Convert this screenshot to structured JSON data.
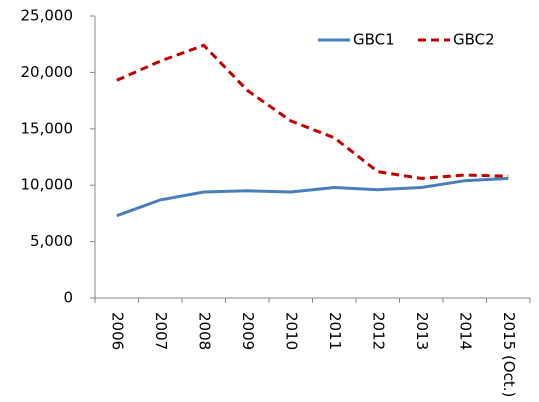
{
  "chart_data": {
    "type": "line",
    "categories": [
      "2006",
      "2007",
      "2008",
      "2009",
      "2010",
      "2011",
      "2012",
      "2013",
      "2014",
      "2015 (Oct.)"
    ],
    "series": [
      {
        "name": "GBC1",
        "color": "#4a7ebb",
        "values": [
          7300,
          8700,
          9400,
          9500,
          9400,
          9800,
          9600,
          9800,
          10400,
          10600
        ]
      },
      {
        "name": "GBC2",
        "color": "#c00000",
        "dashed": true,
        "values": [
          19300,
          21000,
          22400,
          18400,
          15700,
          14200,
          11200,
          10600,
          10900,
          10800
        ]
      }
    ],
    "ylim": [
      0,
      25000
    ],
    "yticks": [
      0,
      {
        "value": 5000,
        "label": "5,000"
      },
      {
        "value": 10000,
        "label": "10,000"
      },
      {
        "value": 15000,
        "label": "15,000"
      },
      {
        "value": 20000,
        "label": "20,000"
      },
      {
        "value": 25000,
        "label": "25,000"
      }
    ],
    "legend": "top-right",
    "grid": false
  }
}
